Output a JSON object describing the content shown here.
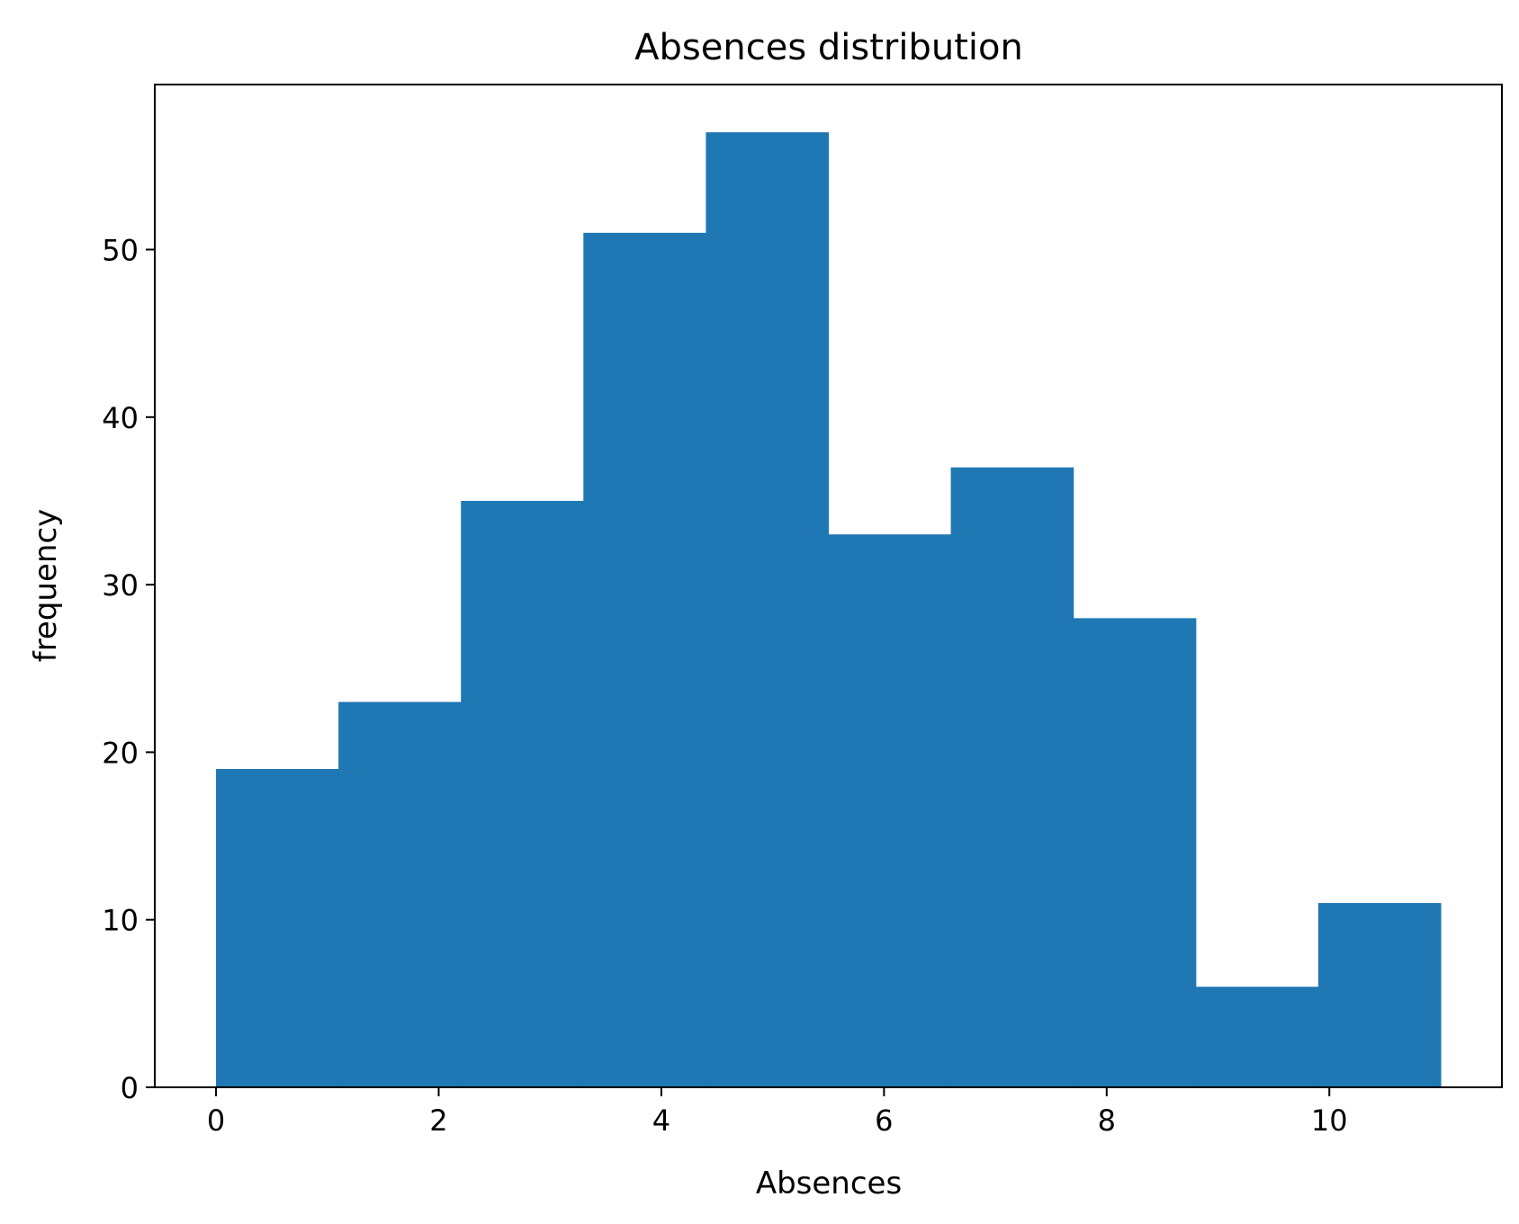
{
  "chart_data": {
    "type": "bar",
    "title": "Absences distribution",
    "xlabel": "Absences",
    "ylabel": "frequency",
    "bins": [
      {
        "start": 0.0,
        "end": 1.1,
        "value": 19
      },
      {
        "start": 1.1,
        "end": 2.2,
        "value": 23
      },
      {
        "start": 2.2,
        "end": 3.3,
        "value": 35
      },
      {
        "start": 3.3,
        "end": 4.4,
        "value": 51
      },
      {
        "start": 4.4,
        "end": 5.5,
        "value": 57
      },
      {
        "start": 5.5,
        "end": 6.6,
        "value": 33
      },
      {
        "start": 6.6,
        "end": 7.7,
        "value": 37
      },
      {
        "start": 7.7,
        "end": 8.8,
        "value": 28
      },
      {
        "start": 8.8,
        "end": 9.9,
        "value": 6
      },
      {
        "start": 9.9,
        "end": 11.0,
        "value": 11
      }
    ],
    "xlim": [
      -0.55,
      11.55
    ],
    "ylim": [
      0,
      59.85
    ],
    "xticks": [
      0,
      2,
      4,
      6,
      8,
      10
    ],
    "yticks": [
      0,
      10,
      20,
      30,
      40,
      50
    ],
    "grid": false,
    "bar_color": "#1f77b4"
  }
}
